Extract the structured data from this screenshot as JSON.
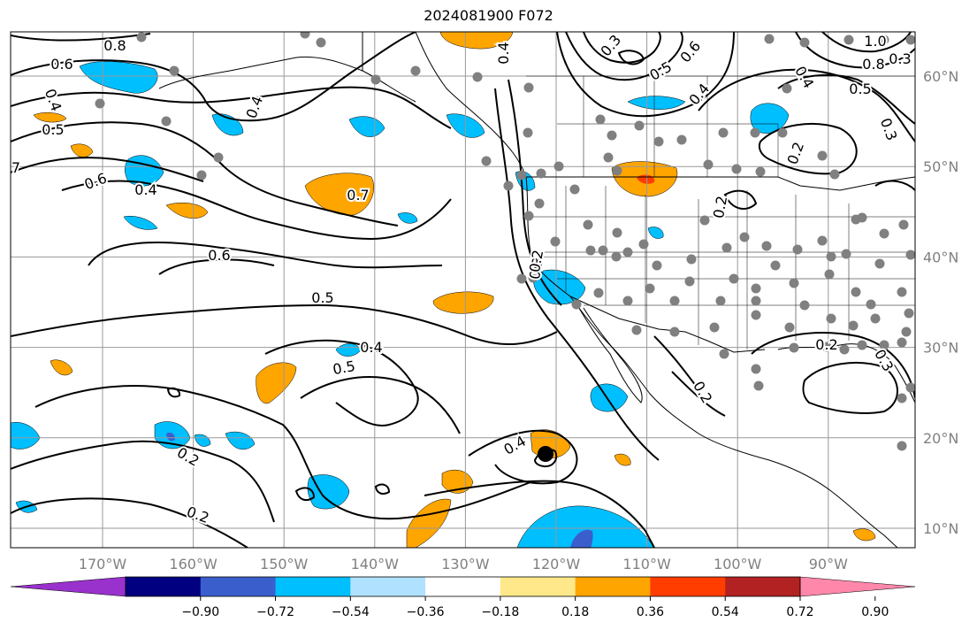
{
  "title": "2024081900 F072",
  "longitudes": [
    {
      "lon": -170,
      "label": "170°W"
    },
    {
      "lon": -160,
      "label": "160°W"
    },
    {
      "lon": -150,
      "label": "150°W"
    },
    {
      "lon": -140,
      "label": "140°W"
    },
    {
      "lon": -130,
      "label": "130°W"
    },
    {
      "lon": -120,
      "label": "120°W"
    },
    {
      "lon": -110,
      "label": "110°W"
    },
    {
      "lon": -100,
      "label": "100°W"
    },
    {
      "lon": -90,
      "label": "90°W"
    }
  ],
  "latitudes": [
    {
      "lat": 60,
      "label": "60°N"
    },
    {
      "lat": 50,
      "label": "50°N"
    },
    {
      "lat": 40,
      "label": "40°N"
    },
    {
      "lat": 30,
      "label": "30°N"
    },
    {
      "lat": 20,
      "label": "20°N"
    },
    {
      "lat": 10,
      "label": "10°N"
    }
  ],
  "colorbar": {
    "colors": [
      "#9932cc",
      "#000080",
      "#3a5fcd",
      "#00bfff",
      "#b0e2ff",
      "#ffffff",
      "#fee88a",
      "#ffa500",
      "#ff3d00",
      "#b22222",
      "#ff88aa"
    ],
    "tick_labels": [
      "−0.90",
      "−0.72",
      "−0.54",
      "−0.36",
      "−0.18",
      "0.18",
      "0.36",
      "0.54",
      "0.72",
      "0.90"
    ]
  },
  "contour_labels": [
    "0.8",
    "0.6",
    "0.4",
    "0.5",
    "7",
    "0.6",
    "0.4",
    "0.7",
    "0.6",
    "0.5",
    "0.4",
    "0.5",
    "0.2",
    "0.4",
    "0.2",
    "0.2",
    "0.4",
    "0.3",
    "0.5",
    "0.6",
    "0.4",
    "0.2",
    "0.8",
    "1.0",
    "0.5",
    "0.4",
    "0.3",
    "0.2",
    "0.3",
    "0.3",
    "0.2",
    "0.3",
    "0.2",
    "0.4"
  ]
}
